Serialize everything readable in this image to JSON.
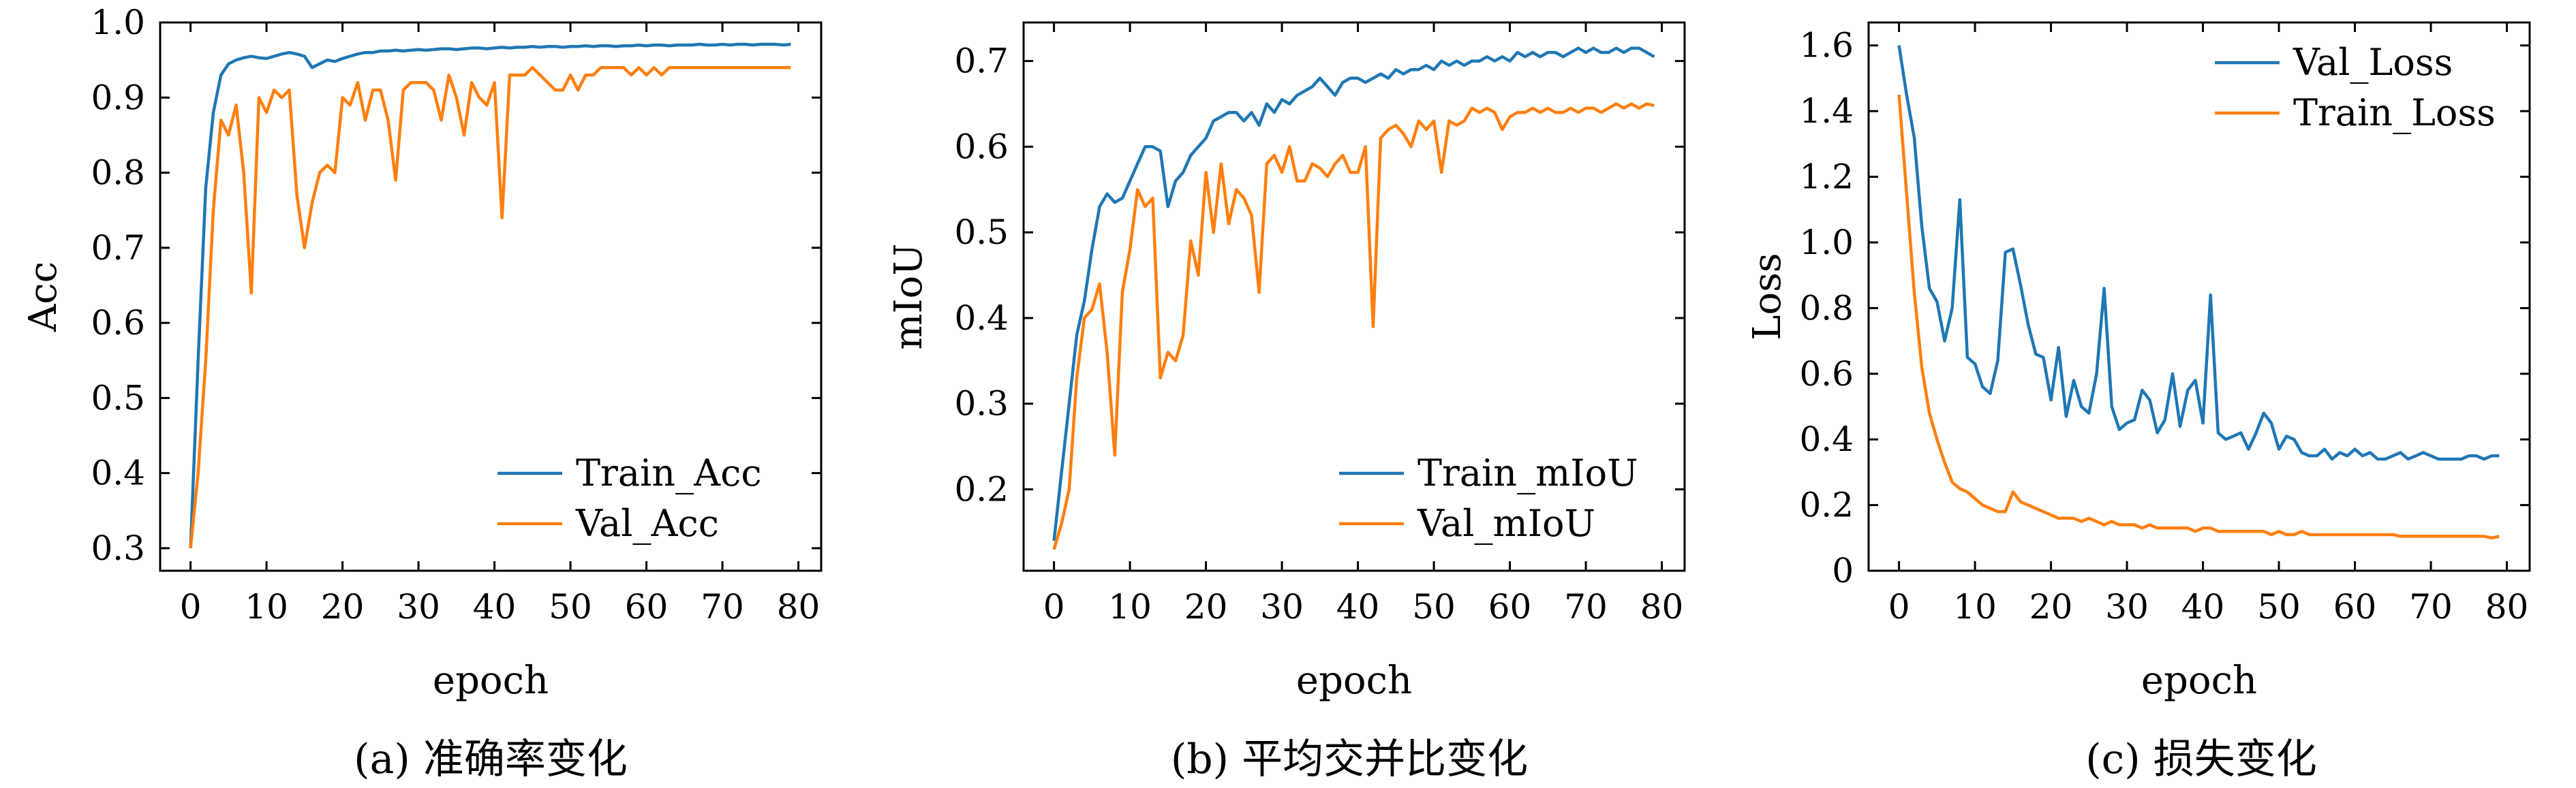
{
  "chart_data": [
    {
      "type": "line",
      "caption": "(a) 准确率变化",
      "xlabel": "epoch",
      "ylabel": "Acc",
      "xlim": [
        -4,
        83
      ],
      "ylim": [
        0.27,
        1.0
      ],
      "xticks": [
        0,
        10,
        20,
        30,
        40,
        50,
        60,
        70,
        80
      ],
      "yticks": [
        0.3,
        0.4,
        0.5,
        0.6,
        0.7,
        0.8,
        0.9,
        1.0
      ],
      "ytick_labels": [
        "0.3",
        "0.4",
        "0.5",
        "0.6",
        "0.7",
        "0.8",
        "0.9",
        "1.0"
      ],
      "legend_position": "lower-right",
      "grid": false,
      "series": [
        {
          "name": "Train_Acc",
          "color": "#1f77b4",
          "values": [
            0.3,
            0.55,
            0.78,
            0.88,
            0.93,
            0.945,
            0.95,
            0.953,
            0.955,
            0.953,
            0.952,
            0.955,
            0.958,
            0.96,
            0.958,
            0.955,
            0.94,
            0.945,
            0.95,
            0.948,
            0.952,
            0.955,
            0.958,
            0.96,
            0.96,
            0.962,
            0.962,
            0.963,
            0.962,
            0.963,
            0.964,
            0.963,
            0.964,
            0.965,
            0.965,
            0.964,
            0.965,
            0.966,
            0.966,
            0.965,
            0.966,
            0.967,
            0.966,
            0.967,
            0.967,
            0.968,
            0.967,
            0.968,
            0.968,
            0.967,
            0.968,
            0.968,
            0.969,
            0.968,
            0.969,
            0.969,
            0.968,
            0.969,
            0.969,
            0.97,
            0.969,
            0.97,
            0.97,
            0.969,
            0.97,
            0.97,
            0.97,
            0.971,
            0.97,
            0.97,
            0.971,
            0.97,
            0.971,
            0.971,
            0.97,
            0.971,
            0.971,
            0.971,
            0.97,
            0.971
          ]
        },
        {
          "name": "Val_Acc",
          "color": "#ff7f0e",
          "values": [
            0.3,
            0.4,
            0.55,
            0.75,
            0.87,
            0.85,
            0.89,
            0.8,
            0.64,
            0.9,
            0.88,
            0.91,
            0.9,
            0.91,
            0.77,
            0.7,
            0.76,
            0.8,
            0.81,
            0.8,
            0.9,
            0.89,
            0.92,
            0.87,
            0.91,
            0.91,
            0.87,
            0.79,
            0.91,
            0.92,
            0.92,
            0.92,
            0.91,
            0.87,
            0.93,
            0.9,
            0.85,
            0.92,
            0.9,
            0.89,
            0.92,
            0.74,
            0.93,
            0.93,
            0.93,
            0.94,
            0.93,
            0.92,
            0.91,
            0.91,
            0.93,
            0.91,
            0.93,
            0.93,
            0.94,
            0.94,
            0.94,
            0.94,
            0.93,
            0.94,
            0.93,
            0.94,
            0.93,
            0.94,
            0.94,
            0.94,
            0.94,
            0.94,
            0.94,
            0.94,
            0.94,
            0.94,
            0.94,
            0.94,
            0.94,
            0.94,
            0.94,
            0.94,
            0.94,
            0.94
          ]
        }
      ]
    },
    {
      "type": "line",
      "caption": "(b) 平均交并比变化",
      "xlabel": "epoch",
      "ylabel": "mIoU",
      "xlim": [
        -4,
        83
      ],
      "ylim": [
        0.105,
        0.745
      ],
      "xticks": [
        0,
        10,
        20,
        30,
        40,
        50,
        60,
        70,
        80
      ],
      "yticks": [
        0.2,
        0.3,
        0.4,
        0.5,
        0.6,
        0.7
      ],
      "ytick_labels": [
        "0.2",
        "0.3",
        "0.4",
        "0.5",
        "0.6",
        "0.7"
      ],
      "legend_position": "lower-right",
      "grid": false,
      "series": [
        {
          "name": "Train_mIoU",
          "color": "#1f77b4",
          "values": [
            0.14,
            0.22,
            0.3,
            0.38,
            0.42,
            0.48,
            0.53,
            0.545,
            0.535,
            0.54,
            0.56,
            0.58,
            0.6,
            0.6,
            0.595,
            0.53,
            0.56,
            0.57,
            0.59,
            0.6,
            0.61,
            0.63,
            0.635,
            0.64,
            0.64,
            0.63,
            0.64,
            0.625,
            0.65,
            0.64,
            0.655,
            0.65,
            0.66,
            0.665,
            0.67,
            0.68,
            0.67,
            0.66,
            0.675,
            0.68,
            0.68,
            0.675,
            0.68,
            0.685,
            0.68,
            0.69,
            0.685,
            0.69,
            0.69,
            0.695,
            0.69,
            0.7,
            0.695,
            0.7,
            0.695,
            0.7,
            0.7,
            0.705,
            0.7,
            0.705,
            0.7,
            0.71,
            0.705,
            0.71,
            0.705,
            0.71,
            0.71,
            0.705,
            0.71,
            0.715,
            0.71,
            0.715,
            0.71,
            0.71,
            0.715,
            0.71,
            0.715,
            0.715,
            0.71,
            0.705
          ]
        },
        {
          "name": "Val_mIoU",
          "color": "#ff7f0e",
          "values": [
            0.13,
            0.16,
            0.2,
            0.33,
            0.4,
            0.41,
            0.44,
            0.36,
            0.24,
            0.43,
            0.48,
            0.55,
            0.53,
            0.54,
            0.33,
            0.36,
            0.35,
            0.38,
            0.49,
            0.45,
            0.57,
            0.5,
            0.58,
            0.51,
            0.55,
            0.54,
            0.52,
            0.43,
            0.58,
            0.59,
            0.57,
            0.6,
            0.56,
            0.56,
            0.58,
            0.575,
            0.565,
            0.58,
            0.59,
            0.57,
            0.57,
            0.6,
            0.39,
            0.61,
            0.62,
            0.625,
            0.615,
            0.6,
            0.63,
            0.62,
            0.63,
            0.57,
            0.63,
            0.625,
            0.63,
            0.645,
            0.64,
            0.645,
            0.64,
            0.62,
            0.635,
            0.64,
            0.64,
            0.645,
            0.64,
            0.645,
            0.64,
            0.64,
            0.645,
            0.64,
            0.645,
            0.645,
            0.64,
            0.645,
            0.65,
            0.645,
            0.65,
            0.645,
            0.65,
            0.648
          ]
        }
      ]
    },
    {
      "type": "line",
      "caption": "(c) 损失变化",
      "xlabel": "epoch",
      "ylabel": "Loss",
      "xlim": [
        -4,
        83
      ],
      "ylim": [
        0.0,
        1.67
      ],
      "xticks": [
        0,
        10,
        20,
        30,
        40,
        50,
        60,
        70,
        80
      ],
      "yticks": [
        0,
        0.2,
        0.4,
        0.6,
        0.8,
        1.0,
        1.2,
        1.4,
        1.6
      ],
      "ytick_labels": [
        "0",
        "0.2",
        "0.4",
        "0.6",
        "0.8",
        "1.0",
        "1.2",
        "1.4",
        "1.6"
      ],
      "legend_position": "upper-right",
      "grid": false,
      "series": [
        {
          "name": "Val_Loss",
          "color": "#1f77b4",
          "values": [
            1.6,
            1.45,
            1.32,
            1.05,
            0.86,
            0.82,
            0.7,
            0.8,
            1.13,
            0.65,
            0.63,
            0.56,
            0.54,
            0.64,
            0.97,
            0.98,
            0.87,
            0.75,
            0.66,
            0.65,
            0.52,
            0.68,
            0.47,
            0.58,
            0.5,
            0.48,
            0.6,
            0.86,
            0.5,
            0.43,
            0.45,
            0.46,
            0.55,
            0.52,
            0.42,
            0.46,
            0.6,
            0.44,
            0.55,
            0.58,
            0.45,
            0.84,
            0.42,
            0.4,
            0.41,
            0.42,
            0.37,
            0.42,
            0.48,
            0.45,
            0.37,
            0.41,
            0.4,
            0.36,
            0.35,
            0.35,
            0.37,
            0.34,
            0.36,
            0.35,
            0.37,
            0.35,
            0.36,
            0.34,
            0.34,
            0.35,
            0.36,
            0.34,
            0.35,
            0.36,
            0.35,
            0.34,
            0.34,
            0.34,
            0.34,
            0.35,
            0.35,
            0.34,
            0.35,
            0.35
          ]
        },
        {
          "name": "Train_Loss",
          "color": "#ff7f0e",
          "values": [
            1.45,
            1.15,
            0.85,
            0.62,
            0.48,
            0.4,
            0.33,
            0.27,
            0.25,
            0.24,
            0.22,
            0.2,
            0.19,
            0.18,
            0.18,
            0.24,
            0.21,
            0.2,
            0.19,
            0.18,
            0.17,
            0.16,
            0.16,
            0.16,
            0.15,
            0.16,
            0.15,
            0.14,
            0.15,
            0.14,
            0.14,
            0.14,
            0.13,
            0.14,
            0.13,
            0.13,
            0.13,
            0.13,
            0.13,
            0.12,
            0.13,
            0.13,
            0.12,
            0.12,
            0.12,
            0.12,
            0.12,
            0.12,
            0.12,
            0.11,
            0.12,
            0.11,
            0.11,
            0.12,
            0.11,
            0.11,
            0.11,
            0.11,
            0.11,
            0.11,
            0.11,
            0.11,
            0.11,
            0.11,
            0.11,
            0.11,
            0.105,
            0.105,
            0.105,
            0.105,
            0.105,
            0.105,
            0.105,
            0.105,
            0.105,
            0.105,
            0.105,
            0.105,
            0.1,
            0.105
          ]
        }
      ]
    }
  ]
}
